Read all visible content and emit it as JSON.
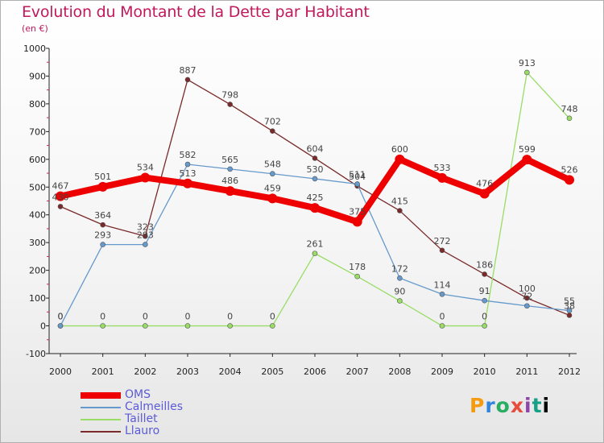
{
  "chart_data": {
    "type": "line",
    "title": "Evolution du Montant de la Dette par Habitant",
    "subtitle": "(en €)",
    "xlabel": "",
    "ylabel": "",
    "x": [
      "2000",
      "2001",
      "2002",
      "2003",
      "2004",
      "2005",
      "2006",
      "2007",
      "2008",
      "2009",
      "2010",
      "2011",
      "2012"
    ],
    "ylim": [
      -100,
      1000
    ],
    "yticks": [
      "-100",
      "0",
      "100",
      "200",
      "300",
      "400",
      "500",
      "600",
      "700",
      "800",
      "900",
      "1000"
    ],
    "grid": false,
    "legend_position": "bottom-left",
    "series": [
      {
        "name": "OMS",
        "color": "#ee0000",
        "values": [
          467,
          501,
          534,
          513,
          486,
          459,
          425,
          375,
          600,
          533,
          476,
          599,
          526
        ]
      },
      {
        "name": "Calmeilles",
        "color": "#6699cc",
        "values": [
          0,
          293,
          293,
          582,
          565,
          548,
          530,
          511,
          172,
          114,
          91,
          72,
          55
        ]
      },
      {
        "name": "Taillet",
        "color": "#99dd66",
        "values": [
          0,
          0,
          0,
          0,
          0,
          0,
          261,
          178,
          90,
          0,
          0,
          913,
          748
        ]
      },
      {
        "name": "Llauro",
        "color": "#7a2a2a",
        "values": [
          430,
          364,
          323,
          887,
          798,
          702,
          604,
          504,
          415,
          272,
          186,
          100,
          38
        ]
      }
    ]
  },
  "logo": {
    "letters": [
      "P",
      "r",
      "o",
      "x",
      "i",
      "t",
      "i"
    ]
  }
}
